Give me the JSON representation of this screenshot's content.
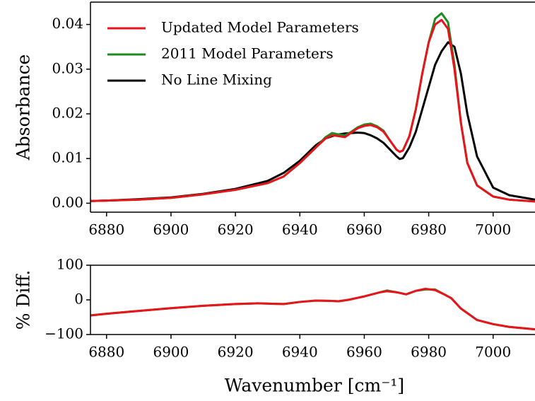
{
  "chart_data": [
    {
      "type": "line",
      "y_label": "Absorbance",
      "legend": "upper left",
      "grid": false,
      "x": [
        6875,
        6880,
        6890,
        6900,
        6910,
        6920,
        6930,
        6935,
        6940,
        6945,
        6948,
        6950,
        6952,
        6954,
        6956,
        6958,
        6960,
        6962,
        6964,
        6966,
        6968,
        6970,
        6971,
        6972,
        6974,
        6976,
        6978,
        6980,
        6982,
        6984,
        6986,
        6988,
        6990,
        6992,
        6995,
        7000,
        7005,
        7013
      ],
      "xlim": [
        6875,
        7013
      ],
      "xticks": [
        6880,
        6900,
        6920,
        6940,
        6960,
        6980,
        7000
      ],
      "ylim": [
        -0.002,
        0.045
      ],
      "yticks": [
        {
          "value": 0,
          "label": "0.00"
        },
        {
          "value": 0.01,
          "label": "0.01"
        },
        {
          "value": 0.02,
          "label": "0.02"
        },
        {
          "value": 0.03,
          "label": "0.03"
        },
        {
          "value": 0.04,
          "label": "0.04"
        }
      ],
      "series": [
        {
          "name": "No Line Mixing",
          "color": "#000000",
          "values": [
            0.0005,
            0.0006,
            0.0009,
            0.0013,
            0.0021,
            0.0032,
            0.005,
            0.0068,
            0.0095,
            0.013,
            0.0145,
            0.015,
            0.0154,
            0.0156,
            0.0157,
            0.0158,
            0.0157,
            0.0152,
            0.0145,
            0.0135,
            0.012,
            0.0105,
            0.0099,
            0.0101,
            0.0125,
            0.016,
            0.021,
            0.026,
            0.031,
            0.034,
            0.036,
            0.035,
            0.029,
            0.02,
            0.0105,
            0.0035,
            0.0018,
            0.0008
          ]
        },
        {
          "name": "2011 Model Parameters",
          "color": "#1f8a1f",
          "values": [
            0.0005,
            0.0006,
            0.0008,
            0.0012,
            0.002,
            0.003,
            0.0045,
            0.006,
            0.009,
            0.0125,
            0.0148,
            0.0157,
            0.0154,
            0.0152,
            0.016,
            0.017,
            0.0176,
            0.0178,
            0.0172,
            0.0162,
            0.014,
            0.012,
            0.0115,
            0.0118,
            0.015,
            0.021,
            0.029,
            0.036,
            0.0413,
            0.0425,
            0.0405,
            0.031,
            0.018,
            0.009,
            0.004,
            0.0015,
            0.0008,
            0.0004
          ]
        },
        {
          "name": "Updated Model Parameters",
          "color": "#e8141b",
          "values": [
            0.0005,
            0.0006,
            0.0008,
            0.0012,
            0.002,
            0.003,
            0.0045,
            0.006,
            0.009,
            0.0125,
            0.0145,
            0.0152,
            0.015,
            0.0148,
            0.0158,
            0.0168,
            0.0173,
            0.0175,
            0.017,
            0.016,
            0.014,
            0.012,
            0.0115,
            0.0118,
            0.015,
            0.021,
            0.029,
            0.036,
            0.04,
            0.041,
            0.039,
            0.03,
            0.018,
            0.009,
            0.004,
            0.0015,
            0.0008,
            0.0004
          ]
        }
      ]
    },
    {
      "type": "line",
      "y_label": "% Diff.",
      "x_label": "Wavenumber [cm⁻¹]",
      "grid": false,
      "x": [
        6875,
        6880,
        6890,
        6900,
        6910,
        6920,
        6927,
        6935,
        6940,
        6945,
        6950,
        6952,
        6955,
        6960,
        6965,
        6967,
        6970,
        6973,
        6976,
        6979,
        6982,
        6985,
        6987,
        6990,
        6995,
        7000,
        7005,
        7013
      ],
      "xlim": [
        6875,
        7013
      ],
      "xticks": [
        6880,
        6900,
        6920,
        6940,
        6960,
        6980,
        7000
      ],
      "ylim": [
        -100,
        100
      ],
      "yticks": [
        {
          "value": -100,
          "label": "−100"
        },
        0,
        100
      ],
      "series": [
        {
          "color": "#1f8a1f",
          "values": [
            -45,
            -40,
            -32,
            -24,
            -17,
            -12,
            -10,
            -12,
            -6,
            -2,
            -3,
            -4,
            0,
            10,
            22,
            27,
            22,
            16,
            26,
            30,
            30,
            15,
            5,
            -25,
            -58,
            -70,
            -78,
            -85
          ]
        },
        {
          "color": "#e8141b",
          "values": [
            -45,
            -40,
            -32,
            -24,
            -17,
            -12,
            -10,
            -12,
            -6,
            -2,
            -3,
            -4,
            0,
            10,
            22,
            25,
            22,
            16,
            26,
            32,
            28,
            15,
            5,
            -25,
            -58,
            -70,
            -78,
            -85
          ]
        }
      ]
    }
  ]
}
